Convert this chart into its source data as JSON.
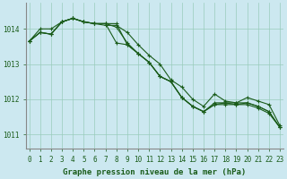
{
  "xlabel": "Graphe pression niveau de la mer (hPa)",
  "x_ticks": [
    0,
    1,
    2,
    3,
    4,
    5,
    6,
    7,
    8,
    9,
    10,
    11,
    12,
    13,
    14,
    15,
    16,
    17,
    18,
    19,
    20,
    21,
    22,
    23
  ],
  "ylim": [
    1010.6,
    1014.75
  ],
  "yticks": [
    1011,
    1012,
    1013,
    1014
  ],
  "background_color": "#cce8f0",
  "grid_color": "#99ccbb",
  "line_color": "#1a5c1a",
  "series": [
    [
      1013.65,
      1013.9,
      1013.85,
      1014.2,
      1014.3,
      1014.2,
      1014.15,
      1014.1,
      1014.1,
      1013.9,
      1013.55,
      1013.25,
      1013.0,
      1012.55,
      1012.35,
      1012.0,
      1011.8,
      1012.15,
      1011.95,
      1011.9,
      1012.05,
      1011.95,
      1011.85,
      1011.25
    ],
    [
      1013.65,
      1014.0,
      1014.0,
      1014.2,
      1014.3,
      1014.2,
      1014.15,
      1014.15,
      1014.15,
      1013.55,
      1013.3,
      1013.05,
      1012.65,
      1012.5,
      1012.05,
      1011.8,
      1011.65,
      1011.85,
      1011.9,
      1011.85,
      1011.85,
      1011.75,
      1011.6,
      1011.2
    ],
    [
      1013.65,
      1013.9,
      1013.85,
      1014.2,
      1014.3,
      1014.2,
      1014.15,
      1014.15,
      1013.6,
      1013.55,
      1013.3,
      1013.05,
      1012.65,
      1012.5,
      1012.05,
      1011.8,
      1011.65,
      1011.9,
      1011.9,
      1011.9,
      1011.9,
      1011.8,
      1011.65,
      1011.2
    ],
    [
      1013.65,
      1013.9,
      1013.85,
      1014.2,
      1014.3,
      1014.2,
      1014.15,
      1014.15,
      1014.05,
      1013.6,
      1013.3,
      1013.05,
      1012.65,
      1012.5,
      1012.05,
      1011.8,
      1011.65,
      1011.85,
      1011.85,
      1011.85,
      1011.9,
      1011.8,
      1011.65,
      1011.2
    ]
  ],
  "line_width": 0.8,
  "marker": "+",
  "marker_size": 3,
  "marker_edge_width": 0.8,
  "tick_fontsize": 5.5,
  "label_fontsize": 6.5,
  "figsize": [
    3.2,
    2.0
  ],
  "dpi": 100
}
